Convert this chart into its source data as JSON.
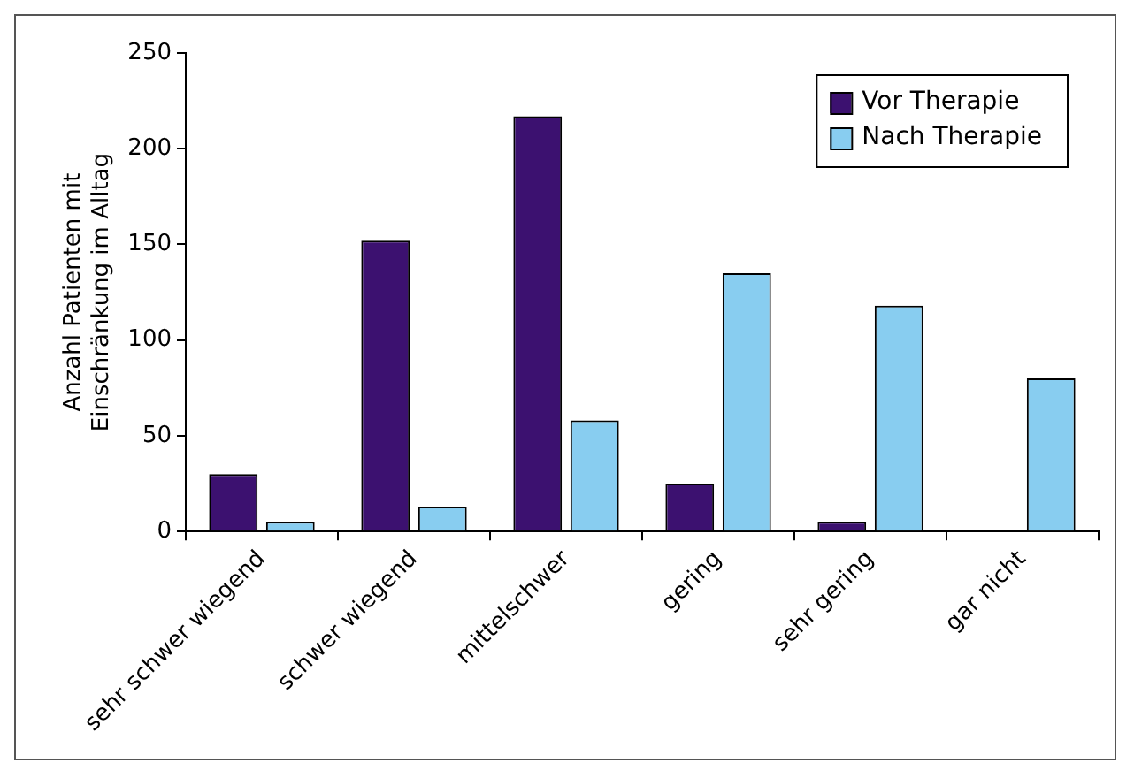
{
  "chart_data": {
    "type": "bar",
    "ylabel": "Anzahl Patienten mit\nEinschränkung im Alltag",
    "categories": [
      "sehr schwer wiegend",
      "schwer wiegend",
      "mittelschwer",
      "gering",
      "sehr gering",
      "gar nicht"
    ],
    "series": [
      {
        "name": "Vor Therapie",
        "color": "#3c1170",
        "values": [
          30,
          152,
          217,
          25,
          5,
          0
        ]
      },
      {
        "name": "Nach Therapie",
        "color": "#88cdf0",
        "values": [
          5,
          13,
          58,
          135,
          118,
          80
        ]
      }
    ],
    "ylim": [
      0,
      250
    ],
    "yticks": [
      0,
      50,
      100,
      150,
      200,
      250
    ],
    "grid": false,
    "legend": "top right"
  }
}
